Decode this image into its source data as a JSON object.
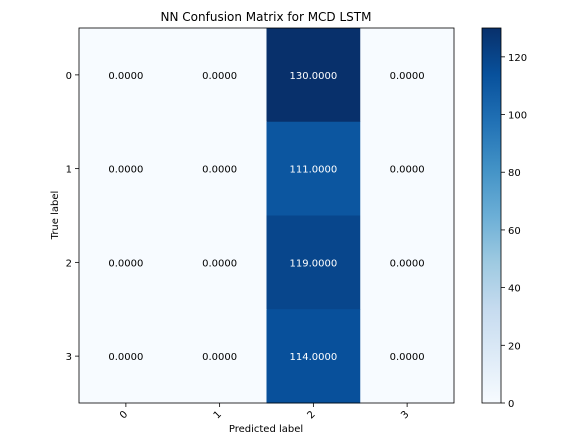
{
  "chart_data": {
    "type": "heatmap",
    "title": "NN Confusion Matrix for MCD LSTM",
    "xlabel": "Predicted label",
    "ylabel": "True label",
    "x_categories": [
      "0",
      "1",
      "2",
      "3"
    ],
    "y_categories": [
      "0",
      "1",
      "2",
      "3"
    ],
    "matrix": [
      [
        0,
        0,
        130,
        0
      ],
      [
        0,
        0,
        111,
        0
      ],
      [
        0,
        0,
        119,
        0
      ],
      [
        0,
        0,
        114,
        0
      ]
    ],
    "cell_labels": [
      [
        "0.0000",
        "0.0000",
        "130.0000",
        "0.0000"
      ],
      [
        "0.0000",
        "0.0000",
        "111.0000",
        "0.0000"
      ],
      [
        "0.0000",
        "0.0000",
        "119.0000",
        "0.0000"
      ],
      [
        "0.0000",
        "0.0000",
        "114.0000",
        "0.0000"
      ]
    ],
    "colormap": "Blues",
    "colormap_stops": [
      "#f7fbff",
      "#deebf7",
      "#c6dbef",
      "#9ecae1",
      "#6baed6",
      "#4292c6",
      "#2171b5",
      "#08519c",
      "#08306b"
    ],
    "vmin": 0,
    "vmax": 130,
    "colorbar_ticks": [
      "0",
      "20",
      "40",
      "60",
      "80",
      "100",
      "120"
    ],
    "colorbar_tick_values": [
      0,
      20,
      40,
      60,
      80,
      100,
      120
    ],
    "grid": false,
    "legend": "colorbar-right"
  }
}
